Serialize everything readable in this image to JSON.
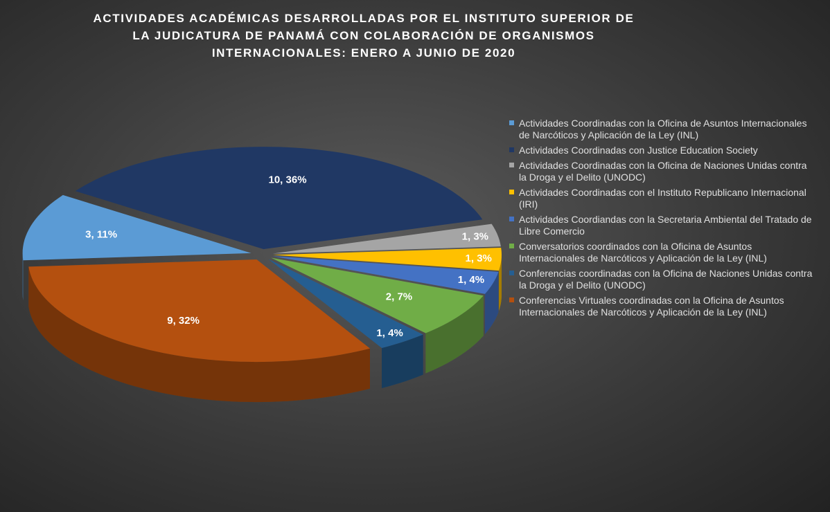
{
  "chart_data": {
    "type": "pie",
    "title": "ACTIVIDADES ACADÉMICAS DESARROLLADAS POR EL INSTITUTO SUPERIOR DE LA JUDICATURA DE PANAMÁ CON COLABORACIÓN DE ORGANISMOS INTERNACIONALES: ENERO A JUNIO DE 2020",
    "categories": [
      "Actividades Coordinadas con la  Oficina de Asuntos Internacionales de Narcóticos y Aplicación de la Ley (INL)",
      "Actividades Coordinadas con Justice Education Society",
      "Actividades Coordinadas con la Oficina de Naciones Unidas contra la Droga y el Delito (UNODC)",
      "Actividades Coordinadas con el Instituto Republicano Internacional (IRI)",
      "Actividades Coordiandas con la Secretaria Ambiental del Tratado de Libre Comercio",
      "Conversatorios coordinados con la Oficina de Asuntos Internacionales de Narcóticos y Aplicación de la Ley (INL)",
      "Conferencias coordinadas con la Oficina de Naciones Unidas contra la Droga y el Delito (UNODC)",
      "Conferencias Virtuales coordinadas con la Oficina de Asuntos Internacionales de Narcóticos y Aplicación de la Ley (INL)"
    ],
    "values": [
      3,
      10,
      1,
      1,
      1,
      2,
      1,
      9
    ],
    "value_labels": [
      "3, 11%",
      "10, 36%",
      "1, 3%",
      "1, 3%",
      "1, 4%",
      "2, 7%",
      "1, 4%",
      "9, 32%"
    ],
    "colors": [
      "#5b9bd5",
      "#203864",
      "#a5a5a5",
      "#ffc000",
      "#4472c4",
      "#70ad47",
      "#255e91",
      "#b4500f"
    ],
    "legend": "right"
  }
}
